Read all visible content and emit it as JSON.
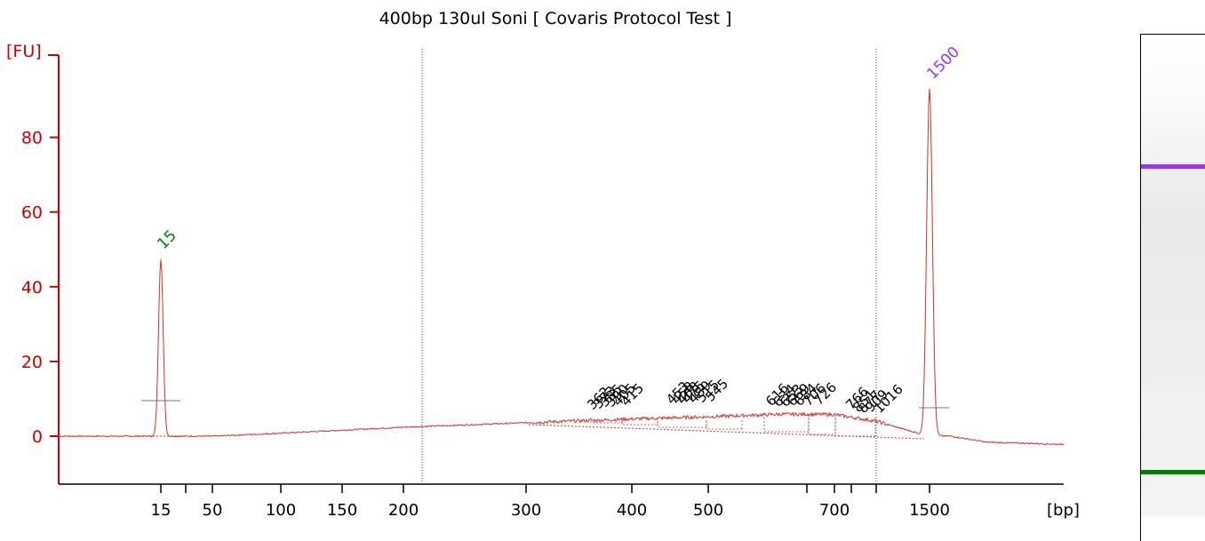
{
  "chart_data": {
    "type": "line",
    "title": "400bp 130ul Soni  [ Covaris Protocol Test ]",
    "ylabel": "[FU]",
    "xlabel": "[bp]",
    "ylim": [
      -12,
      100
    ],
    "y_ticks": [
      0,
      20,
      40,
      60,
      80
    ],
    "x_tick_labels": [
      "15",
      "50",
      "100",
      "150",
      "200",
      "300",
      "400",
      "500",
      "700",
      "1500"
    ],
    "x_minor_ticks_unlabeled": 4,
    "x_scale": "electropherogram sizing (non-linear)",
    "series": [
      {
        "color": "#cc3333",
        "x": [
          "start",
          "15 marker",
          "15",
          "15 marker end",
          "50",
          "100",
          "150",
          "200",
          "300",
          "400",
          "500",
          "700",
          "end of smear",
          "1500",
          "1500 peak",
          "after 1500",
          "end"
        ],
        "y": [
          0,
          0,
          47.5,
          0,
          0,
          0.8,
          1.6,
          2.4,
          3.6,
          4.6,
          5.2,
          5.8,
          1.0,
          0.2,
          93,
          0,
          -2.2
        ]
      }
    ],
    "markers": [
      {
        "label": "15",
        "fu": 47.5,
        "color": "#008000"
      },
      {
        "label": "1500",
        "fu": 93,
        "color": "#9933ff"
      }
    ],
    "fragment_labels": [
      "362",
      "373",
      "385",
      "390",
      "405",
      "415",
      "453",
      "458",
      "468",
      "475",
      "489",
      "515",
      "545",
      "616",
      "634",
      "653",
      "669",
      "684",
      "706",
      "726",
      "766",
      "851",
      "877",
      "909",
      "1016"
    ],
    "region_lines_bp": [
      "~210",
      "~1000"
    ],
    "gel_bands": [
      {
        "name": "upper marker",
        "color": "#9933ff"
      },
      {
        "name": "lower marker",
        "color": "#008000"
      }
    ],
    "grid": false,
    "legend": "none"
  }
}
